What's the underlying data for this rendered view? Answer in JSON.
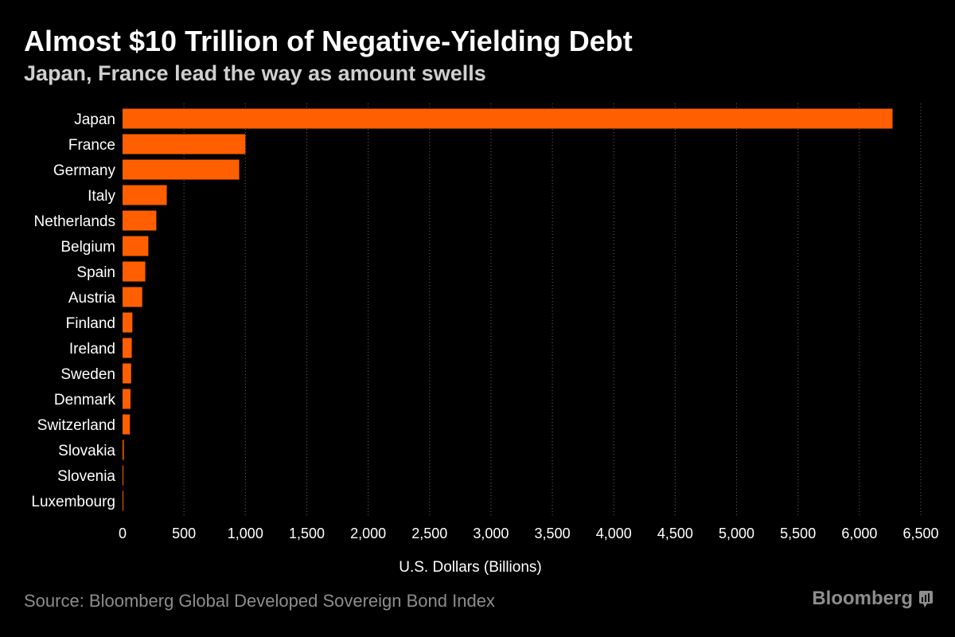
{
  "title": "Almost $10 Trillion of Negative-Yielding Debt",
  "subtitle": "Japan, France lead the way as amount swells",
  "source": "Source: Bloomberg Global Developed Sovereign Bond Index",
  "brand": "Bloomberg",
  "brand_icon": "bloomberg-chart-icon",
  "colors": {
    "bar": "#ff5f00",
    "background": "#000000",
    "grid": "#666666"
  },
  "chart_data": {
    "type": "bar",
    "orientation": "horizontal",
    "title": "Almost $10 Trillion of Negative-Yielding Debt",
    "subtitle": "Japan, France lead the way as amount swells",
    "xlabel": "U.S. Dollars (Billions)",
    "ylabel": "",
    "xlim": [
      0,
      6500
    ],
    "grid": true,
    "legend": "none",
    "x_ticks": [
      0,
      500,
      1000,
      1500,
      2000,
      2500,
      3000,
      3500,
      4000,
      4500,
      5000,
      5500,
      6000,
      6500
    ],
    "x_tick_labels": [
      "0",
      "500",
      "1,000",
      "1,500",
      "2,000",
      "2,500",
      "3,000",
      "3,500",
      "4,000",
      "4,500",
      "5,000",
      "5,500",
      "6,000",
      "6,500"
    ],
    "categories": [
      "Japan",
      "France",
      "Germany",
      "Italy",
      "Netherlands",
      "Belgium",
      "Spain",
      "Austria",
      "Finland",
      "Ireland",
      "Sweden",
      "Denmark",
      "Switzerland",
      "Slovakia",
      "Slovenia",
      "Luxembourg"
    ],
    "values": [
      6270,
      1000,
      950,
      360,
      275,
      210,
      185,
      160,
      80,
      75,
      70,
      65,
      60,
      10,
      6,
      4
    ]
  }
}
